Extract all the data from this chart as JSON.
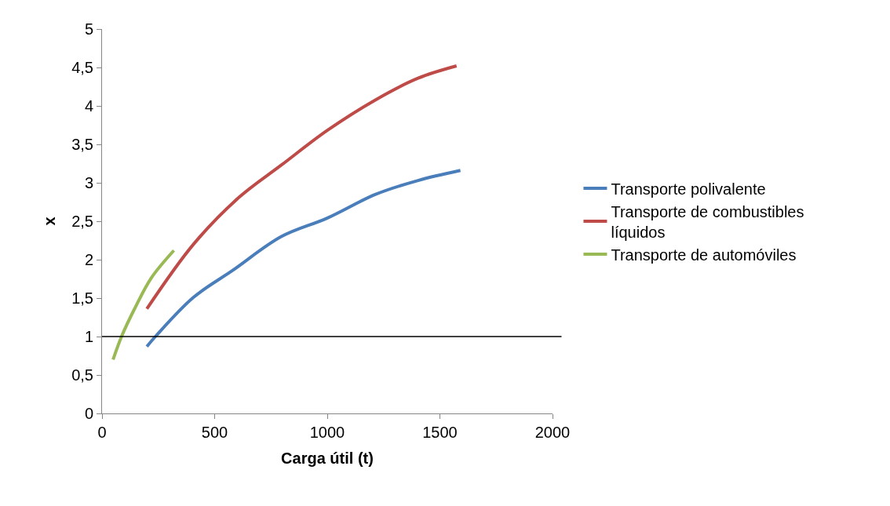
{
  "chart_data": {
    "type": "line",
    "xlabel": "Carga útil (t)",
    "ylabel": "x",
    "xlim": [
      0,
      2000
    ],
    "xticks": [
      0,
      500,
      1000,
      1500,
      2000
    ],
    "ylim": [
      0,
      5
    ],
    "yticks": [
      0,
      {
        "value": 0.5,
        "label": "0,5"
      },
      1,
      {
        "value": 1.5,
        "label": "1,5"
      },
      2,
      {
        "value": 2.5,
        "label": "2,5"
      },
      3,
      {
        "value": 3.5,
        "label": "3,5"
      },
      4,
      {
        "value": 4.5,
        "label": "4,5"
      },
      5
    ],
    "legend": "right",
    "line_style": "solid",
    "marker": "none",
    "ref_lines": [
      {
        "axis": "y",
        "value": 1,
        "color": "#000000"
      }
    ],
    "series": [
      {
        "name": "Transporte polivalente",
        "color": "#4a7ebb",
        "x": [
          199,
          240,
          406,
          580,
          796,
          999,
          1215,
          1403,
          1591
        ],
        "values": [
          0.87,
          1.01,
          1.51,
          1.86,
          2.3,
          2.54,
          2.85,
          3.03,
          3.16
        ]
      },
      {
        "name": "Transporte de combustibles líquidos",
        "color": "#be4b48",
        "x": [
          199,
          406,
          608,
          796,
          999,
          1215,
          1403,
          1574
        ],
        "values": [
          1.36,
          2.2,
          2.81,
          3.23,
          3.68,
          4.08,
          4.36,
          4.52
        ]
      },
      {
        "name": "Transporte de automóviles",
        "color": "#98b954",
        "x": [
          49,
          88,
          146,
          218,
          319
        ],
        "values": [
          0.7,
          1.01,
          1.37,
          1.76,
          2.12
        ]
      }
    ]
  }
}
